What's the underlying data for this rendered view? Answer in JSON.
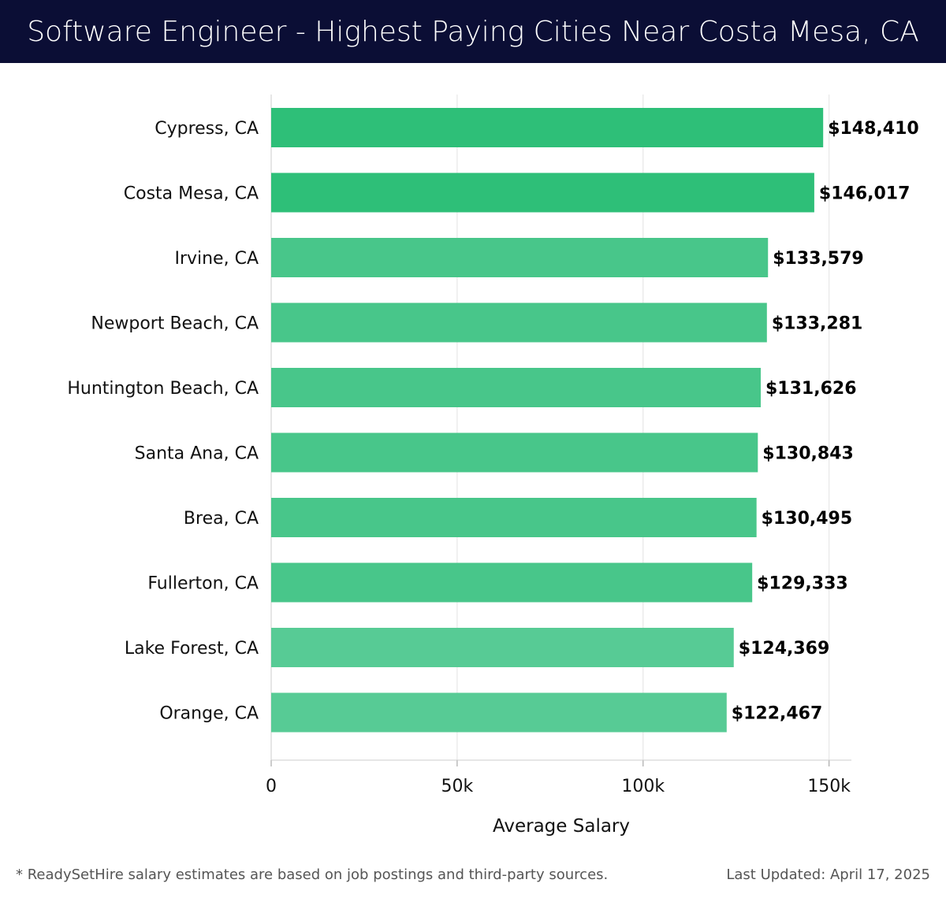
{
  "header": {
    "title": "Software Engineer - Highest Paying Cities Near Costa Mesa, CA"
  },
  "chart_data": {
    "type": "bar",
    "orientation": "horizontal",
    "title": "Software Engineer - Highest Paying Cities Near Costa Mesa, CA",
    "xlabel": "Average Salary",
    "ylabel": "",
    "xlim": [
      0,
      156000
    ],
    "x_ticks": [
      0,
      50000,
      100000,
      150000
    ],
    "x_tick_labels": [
      "0",
      "50k",
      "100k",
      "150k"
    ],
    "grid": "vertical",
    "categories": [
      "Cypress, CA",
      "Costa Mesa, CA",
      "Irvine, CA",
      "Newport Beach, CA",
      "Huntington Beach, CA",
      "Santa Ana, CA",
      "Brea, CA",
      "Fullerton, CA",
      "Lake Forest, CA",
      "Orange, CA"
    ],
    "values": [
      148410,
      146017,
      133579,
      133281,
      131626,
      130843,
      130495,
      129333,
      124369,
      122467
    ],
    "value_labels": [
      "$148,410",
      "$146,017",
      "$133,579",
      "$133,281",
      "$131,626",
      "$130,843",
      "$130,495",
      "$129,333",
      "$124,369",
      "$122,467"
    ],
    "colors": [
      "#2ebf78",
      "#2ebf78",
      "#48c68a",
      "#48c68a",
      "#48c68a",
      "#48c68a",
      "#48c68a",
      "#48c68a",
      "#57cb95",
      "#57cb95"
    ]
  },
  "footer": {
    "note": "* ReadySetHire salary estimates are based on job postings and third-party sources.",
    "updated": "Last Updated: April 17, 2025"
  }
}
